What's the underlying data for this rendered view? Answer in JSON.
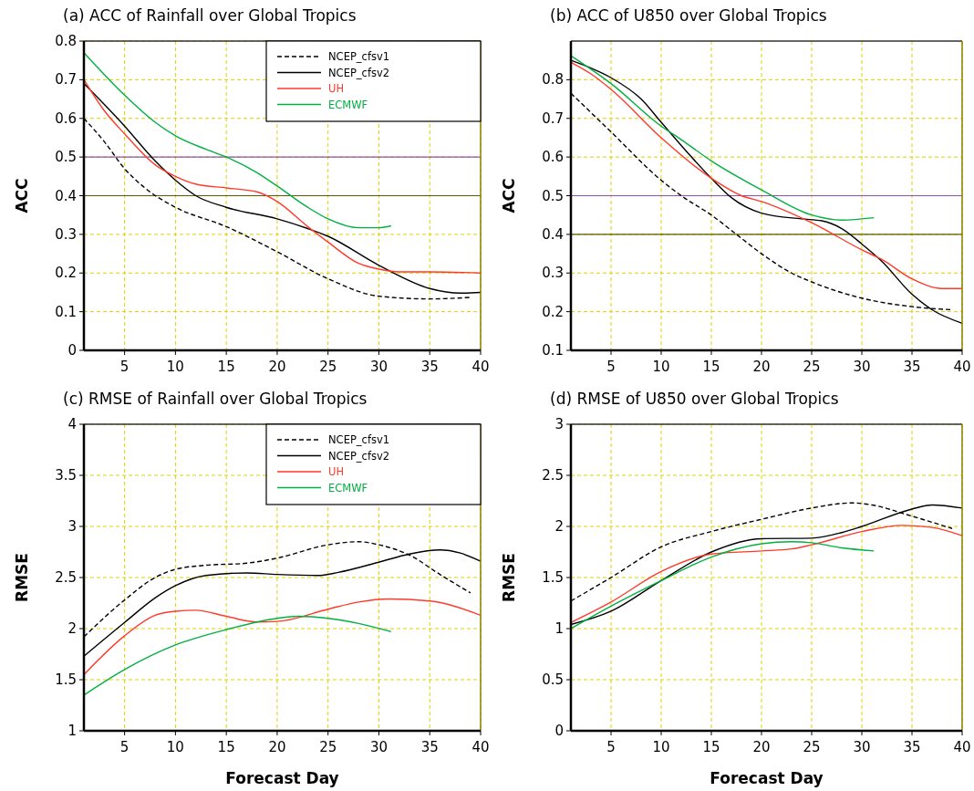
{
  "chart_data": [
    {
      "type": "line",
      "title": "(a) ACC of Rainfall over Global Tropics",
      "ylabel": "ACC",
      "xlim": [
        1,
        40
      ],
      "xticks": [
        5,
        10,
        15,
        20,
        25,
        30,
        35,
        40
      ],
      "ylim": [
        0,
        0.8
      ],
      "yticks": [
        0,
        0.1,
        0.2,
        0.3,
        0.4,
        0.5,
        0.6,
        0.7,
        0.8
      ],
      "grid": true,
      "legend": "top right",
      "marker": "none",
      "ref_lines": [
        {
          "axis": "y",
          "value": 0.5,
          "color": "#9050b0"
        },
        {
          "axis": "y",
          "value": 0.4,
          "color": "#5a5a00"
        }
      ],
      "series": [
        {
          "name": "NCEP_cfsv1",
          "color": "#000000",
          "line_style": "dashed",
          "x": [
            1,
            3,
            5,
            7,
            10,
            15,
            20,
            25,
            30,
            35,
            39
          ],
          "values": [
            0.6,
            0.54,
            0.47,
            0.42,
            0.37,
            0.32,
            0.255,
            0.185,
            0.14,
            0.133,
            0.137
          ]
        },
        {
          "name": "NCEP_cfsv2",
          "color": "#000000",
          "line_style": "solid",
          "x": [
            1,
            5,
            8,
            10,
            12,
            15,
            20,
            23,
            25,
            30,
            35,
            38,
            40
          ],
          "values": [
            0.69,
            0.58,
            0.49,
            0.44,
            0.4,
            0.37,
            0.34,
            0.315,
            0.295,
            0.22,
            0.16,
            0.148,
            0.15
          ]
        },
        {
          "name": "UH",
          "color": "#ff3a2a",
          "line_style": "solid",
          "x": [
            1,
            3,
            5,
            8,
            10,
            12,
            15,
            18,
            20,
            23,
            25,
            28,
            30,
            32,
            35,
            40
          ],
          "values": [
            0.7,
            0.62,
            0.56,
            0.48,
            0.45,
            0.43,
            0.42,
            0.41,
            0.385,
            0.32,
            0.28,
            0.225,
            0.21,
            0.203,
            0.203,
            0.2
          ]
        },
        {
          "name": "ECMWF",
          "color": "#00b040",
          "line_style": "solid",
          "x": [
            1,
            5,
            8,
            10,
            13,
            15,
            18,
            20,
            23,
            25,
            28,
            30,
            31.2
          ],
          "values": [
            0.77,
            0.66,
            0.59,
            0.555,
            0.52,
            0.5,
            0.46,
            0.425,
            0.37,
            0.34,
            0.317,
            0.317,
            0.322
          ]
        }
      ]
    },
    {
      "type": "line",
      "title": "(b) ACC of U850 over Global Tropics",
      "ylabel": "ACC",
      "xlim": [
        1,
        40
      ],
      "xticks": [
        5,
        10,
        15,
        20,
        25,
        30,
        35,
        40
      ],
      "ylim": [
        0.1,
        0.9
      ],
      "yticks": [
        0.1,
        0.2,
        0.3,
        0.4,
        0.5,
        0.6,
        0.7,
        0.8
      ],
      "grid": true,
      "marker": "none",
      "ref_lines": [
        {
          "axis": "y",
          "value": 0.5,
          "color": "#9050b0"
        },
        {
          "axis": "y",
          "value": 0.4,
          "color": "#5a5a00"
        }
      ],
      "series": [
        {
          "color": "#000000",
          "line_style": "dashed",
          "x": [
            1,
            5,
            10,
            12,
            15,
            17.5,
            20,
            23,
            25,
            30,
            35,
            39
          ],
          "values": [
            0.765,
            0.665,
            0.54,
            0.5,
            0.45,
            0.4,
            0.35,
            0.3,
            0.277,
            0.235,
            0.213,
            0.205
          ]
        },
        {
          "color": "#000000",
          "line_style": "solid",
          "x": [
            1,
            3,
            5,
            8,
            10,
            12,
            15,
            17,
            20,
            24,
            26,
            28,
            30,
            32,
            35,
            37,
            40
          ],
          "values": [
            0.85,
            0.83,
            0.805,
            0.75,
            0.69,
            0.63,
            0.545,
            0.495,
            0.455,
            0.44,
            0.435,
            0.415,
            0.375,
            0.33,
            0.245,
            0.205,
            0.17
          ]
        },
        {
          "color": "#ff3a2a",
          "line_style": "solid",
          "x": [
            1,
            3,
            5,
            10,
            15,
            18,
            20,
            25,
            30,
            32,
            35,
            38,
            40
          ],
          "values": [
            0.845,
            0.815,
            0.775,
            0.65,
            0.545,
            0.5,
            0.485,
            0.43,
            0.36,
            0.335,
            0.285,
            0.26,
            0.26
          ]
        },
        {
          "color": "#00b040",
          "line_style": "solid",
          "x": [
            1,
            5,
            10,
            12,
            15,
            20,
            25,
            28,
            31.2
          ],
          "values": [
            0.862,
            0.79,
            0.68,
            0.645,
            0.59,
            0.515,
            0.45,
            0.437,
            0.443
          ]
        }
      ]
    },
    {
      "type": "line",
      "title": "(c) RMSE of Rainfall over Global Tropics",
      "xlabel": "Forecast Day",
      "ylabel": "RMSE",
      "xlim": [
        1,
        40
      ],
      "xticks": [
        5,
        10,
        15,
        20,
        25,
        30,
        35,
        40
      ],
      "ylim": [
        1,
        4
      ],
      "yticks": [
        1,
        1.5,
        2,
        2.5,
        3,
        3.5,
        4
      ],
      "grid": true,
      "legend": "top right",
      "marker": "none",
      "series": [
        {
          "name": "NCEP_cfsv1",
          "color": "#000000",
          "line_style": "dashed",
          "x": [
            1,
            5,
            8,
            10,
            13,
            17,
            20,
            25,
            28,
            30,
            33,
            36,
            39
          ],
          "values": [
            1.92,
            2.28,
            2.5,
            2.58,
            2.62,
            2.64,
            2.69,
            2.82,
            2.85,
            2.82,
            2.72,
            2.53,
            2.35
          ]
        },
        {
          "name": "NCEP_cfsv2",
          "color": "#000000",
          "line_style": "solid",
          "x": [
            1,
            5,
            8,
            10,
            13,
            17,
            20,
            24,
            26,
            30,
            33,
            36,
            38,
            40
          ],
          "values": [
            1.73,
            2.06,
            2.3,
            2.42,
            2.52,
            2.545,
            2.53,
            2.52,
            2.55,
            2.65,
            2.73,
            2.77,
            2.74,
            2.66
          ]
        },
        {
          "name": "UH",
          "color": "#ff3a2a",
          "line_style": "solid",
          "x": [
            1,
            5,
            8,
            10,
            12,
            15,
            18,
            20,
            25,
            28,
            31,
            35,
            40
          ],
          "values": [
            1.55,
            1.93,
            2.13,
            2.17,
            2.18,
            2.12,
            2.065,
            2.07,
            2.19,
            2.26,
            2.29,
            2.27,
            2.13
          ]
        },
        {
          "name": "ECMWF",
          "color": "#00b040",
          "line_style": "solid",
          "x": [
            1,
            5,
            10,
            15,
            20,
            22,
            25,
            28,
            31.2
          ],
          "values": [
            1.35,
            1.6,
            1.84,
            1.99,
            2.1,
            2.12,
            2.1,
            2.05,
            1.97
          ]
        }
      ]
    },
    {
      "type": "line",
      "title": "(d) RMSE of U850 over Global Tropics",
      "xlabel": "Forecast Day",
      "ylabel": "RMSE",
      "xlim": [
        1,
        40
      ],
      "xticks": [
        5,
        10,
        15,
        20,
        25,
        30,
        35,
        40
      ],
      "ylim": [
        0,
        3
      ],
      "yticks": [
        0,
        0.5,
        1,
        1.5,
        2,
        2.5,
        3
      ],
      "grid": true,
      "marker": "none",
      "series": [
        {
          "color": "#000000",
          "line_style": "dashed",
          "x": [
            1,
            5,
            10,
            15,
            20,
            25,
            29,
            31,
            35,
            39
          ],
          "values": [
            1.27,
            1.5,
            1.8,
            1.95,
            2.07,
            2.18,
            2.23,
            2.21,
            2.1,
            1.98
          ]
        },
        {
          "color": "#000000",
          "line_style": "solid",
          "x": [
            1,
            5,
            10,
            15,
            20,
            25,
            28,
            30,
            35,
            37,
            40
          ],
          "values": [
            1.04,
            1.17,
            1.47,
            1.75,
            1.88,
            1.885,
            1.94,
            2.0,
            2.17,
            2.21,
            2.18
          ]
        },
        {
          "color": "#ff3a2a",
          "line_style": "solid",
          "x": [
            1,
            5,
            10,
            15,
            20,
            23,
            25,
            30,
            34,
            37,
            40
          ],
          "values": [
            1.06,
            1.26,
            1.56,
            1.73,
            1.76,
            1.78,
            1.82,
            1.95,
            2.01,
            1.99,
            1.91
          ]
        },
        {
          "color": "#00b040",
          "line_style": "solid",
          "x": [
            1,
            5,
            10,
            15,
            20,
            23,
            25,
            28,
            31.2
          ],
          "values": [
            1.0,
            1.22,
            1.47,
            1.7,
            1.83,
            1.85,
            1.84,
            1.79,
            1.76
          ]
        }
      ]
    }
  ]
}
